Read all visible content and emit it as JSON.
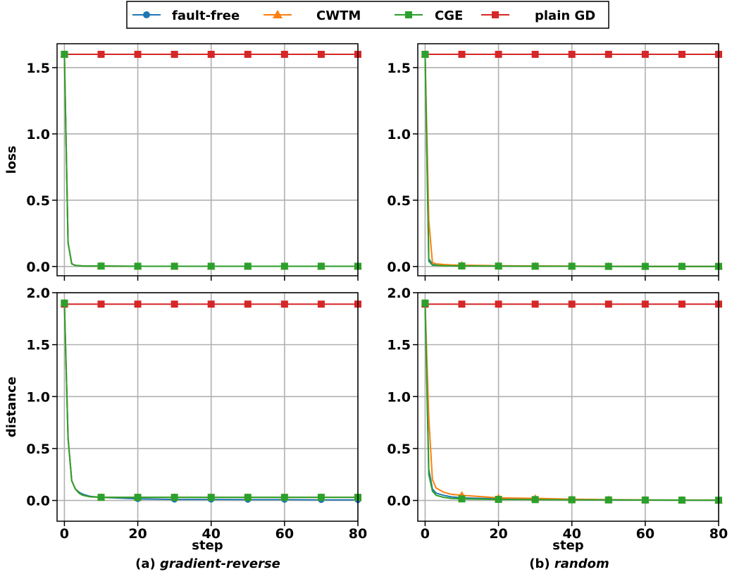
{
  "legend": {
    "placement": "top-center",
    "entries": [
      {
        "label": "fault-free",
        "color": "#1f77b4",
        "marker": "circle"
      },
      {
        "label": "CWTM",
        "color": "#ff7f0e",
        "marker": "triangle"
      },
      {
        "label": "CGE",
        "color": "#2ca02c",
        "marker": "square"
      },
      {
        "label": "plain GD",
        "color": "#d62728",
        "marker": "square"
      }
    ]
  },
  "captions": {
    "a_prefix": "(a) ",
    "a_name": "gradient-reverse",
    "b_prefix": "(b) ",
    "b_name": "random"
  },
  "chart_data": [
    {
      "id": "a-loss",
      "type": "line",
      "xlabel": "",
      "ylabel": "loss",
      "xlim": [
        -2,
        80
      ],
      "ylim": [
        -0.07,
        1.68
      ],
      "grid": true,
      "xticks": [
        0,
        20,
        40,
        60,
        80
      ],
      "yticks": [
        0.0,
        0.5,
        1.0,
        1.5
      ],
      "xtick_labels_visible": false,
      "series": [
        {
          "name": "fault-free",
          "x": [
            0,
            1,
            2,
            3,
            5,
            7,
            10,
            20,
            30,
            40,
            50,
            60,
            70,
            80
          ],
          "y": [
            1.6,
            0.18,
            0.02,
            0.008,
            0.004,
            0.003,
            0.003,
            0.002,
            0.002,
            0.002,
            0.002,
            0.002,
            0.002,
            0.002
          ],
          "marker_x": [
            0,
            10,
            20,
            30,
            40,
            50,
            60,
            70,
            80
          ]
        },
        {
          "name": "CWTM",
          "x": [
            0,
            1,
            2,
            3,
            5,
            7,
            10,
            20,
            30,
            40,
            50,
            60,
            70,
            80
          ],
          "y": [
            1.6,
            0.18,
            0.02,
            0.008,
            0.004,
            0.003,
            0.003,
            0.002,
            0.002,
            0.002,
            0.002,
            0.002,
            0.002,
            0.002
          ],
          "marker_x": [
            0,
            10,
            20,
            30,
            40,
            50,
            60,
            70,
            80
          ]
        },
        {
          "name": "CGE",
          "x": [
            0,
            1,
            2,
            3,
            5,
            7,
            10,
            20,
            30,
            40,
            50,
            60,
            70,
            80
          ],
          "y": [
            1.6,
            0.18,
            0.02,
            0.008,
            0.004,
            0.003,
            0.003,
            0.002,
            0.002,
            0.002,
            0.002,
            0.002,
            0.002,
            0.002
          ],
          "marker_x": [
            0,
            10,
            20,
            30,
            40,
            50,
            60,
            70,
            80
          ]
        },
        {
          "name": "plain GD",
          "x": [
            0,
            10,
            20,
            30,
            40,
            50,
            60,
            70,
            80
          ],
          "y": [
            1.6,
            1.6,
            1.6,
            1.6,
            1.6,
            1.6,
            1.6,
            1.6,
            1.6
          ],
          "marker_x": [
            0,
            10,
            20,
            30,
            40,
            50,
            60,
            70,
            80
          ]
        }
      ]
    },
    {
      "id": "b-loss",
      "type": "line",
      "xlabel": "",
      "ylabel": "",
      "xlim": [
        -2,
        80
      ],
      "ylim": [
        -0.07,
        1.68
      ],
      "grid": true,
      "xticks": [
        0,
        20,
        40,
        60,
        80
      ],
      "yticks": [
        0.0,
        0.5,
        1.0,
        1.5
      ],
      "xtick_labels_visible": false,
      "series": [
        {
          "name": "fault-free",
          "x": [
            0,
            1,
            2,
            3,
            5,
            7,
            10,
            20,
            30,
            40,
            50,
            60,
            70,
            80
          ],
          "y": [
            1.6,
            0.06,
            0.015,
            0.01,
            0.008,
            0.007,
            0.006,
            0.004,
            0.003,
            0.002,
            0.002,
            0.001,
            0.001,
            0.001
          ],
          "marker_x": [
            0,
            10,
            20,
            30,
            40,
            50,
            60,
            70,
            80
          ]
        },
        {
          "name": "CWTM",
          "x": [
            0,
            1,
            2,
            3,
            5,
            7,
            10,
            20,
            30,
            40,
            50,
            60,
            70,
            80
          ],
          "y": [
            1.6,
            0.35,
            0.03,
            0.02,
            0.015,
            0.012,
            0.01,
            0.006,
            0.004,
            0.003,
            0.002,
            0.001,
            0.001,
            0.001
          ],
          "marker_x": [
            0,
            10,
            20,
            30,
            40,
            50,
            60,
            70,
            80
          ]
        },
        {
          "name": "CGE",
          "x": [
            0,
            1,
            2,
            3,
            5,
            7,
            10,
            20,
            30,
            40,
            50,
            60,
            70,
            80
          ],
          "y": [
            1.6,
            0.04,
            0.01,
            0.008,
            0.006,
            0.005,
            0.004,
            0.003,
            0.002,
            0.002,
            0.001,
            0.001,
            0.001,
            0.001
          ],
          "marker_x": [
            0,
            10,
            20,
            30,
            40,
            50,
            60,
            70,
            80
          ]
        },
        {
          "name": "plain GD",
          "x": [
            0,
            10,
            20,
            30,
            40,
            50,
            60,
            70,
            80
          ],
          "y": [
            1.6,
            1.6,
            1.6,
            1.6,
            1.6,
            1.6,
            1.6,
            1.6,
            1.6
          ],
          "marker_x": [
            0,
            10,
            20,
            30,
            40,
            50,
            60,
            70,
            80
          ]
        }
      ]
    },
    {
      "id": "a-distance",
      "type": "line",
      "xlabel": "step",
      "ylabel": "distance",
      "xlim": [
        -2,
        80
      ],
      "ylim": [
        -0.2,
        2.0
      ],
      "grid": true,
      "xticks": [
        0,
        20,
        40,
        60,
        80
      ],
      "yticks": [
        0.0,
        0.5,
        1.0,
        1.5,
        2.0
      ],
      "xtick_labels_visible": true,
      "series": [
        {
          "name": "fault-free",
          "x": [
            0,
            1,
            2,
            3,
            4,
            5,
            7,
            10,
            20,
            30,
            40,
            50,
            60,
            70,
            80
          ],
          "y": [
            1.9,
            0.6,
            0.19,
            0.11,
            0.08,
            0.06,
            0.04,
            0.03,
            0.015,
            0.01,
            0.01,
            0.008,
            0.008,
            0.006,
            0.005
          ],
          "marker_x": [
            0,
            10,
            20,
            30,
            40,
            50,
            60,
            70,
            80
          ]
        },
        {
          "name": "CWTM",
          "x": [
            0,
            1,
            2,
            3,
            4,
            5,
            7,
            10,
            20,
            30,
            40,
            50,
            60,
            70,
            80
          ],
          "y": [
            1.9,
            0.6,
            0.19,
            0.11,
            0.07,
            0.05,
            0.035,
            0.03,
            0.03,
            0.03,
            0.03,
            0.03,
            0.03,
            0.03,
            0.03
          ],
          "marker_x": [
            0,
            10,
            20,
            30,
            40,
            50,
            60,
            70,
            80
          ]
        },
        {
          "name": "CGE",
          "x": [
            0,
            1,
            2,
            3,
            4,
            5,
            7,
            10,
            20,
            30,
            40,
            50,
            60,
            70,
            80
          ],
          "y": [
            1.9,
            0.6,
            0.19,
            0.11,
            0.07,
            0.05,
            0.035,
            0.03,
            0.03,
            0.03,
            0.03,
            0.03,
            0.03,
            0.03,
            0.03
          ],
          "marker_x": [
            0,
            10,
            20,
            30,
            40,
            50,
            60,
            70,
            80
          ]
        },
        {
          "name": "plain GD",
          "x": [
            0,
            10,
            20,
            30,
            40,
            50,
            60,
            70,
            80
          ],
          "y": [
            1.89,
            1.89,
            1.89,
            1.89,
            1.89,
            1.89,
            1.89,
            1.89,
            1.89
          ],
          "marker_x": [
            0,
            10,
            20,
            30,
            40,
            50,
            60,
            70,
            80
          ]
        }
      ]
    },
    {
      "id": "b-distance",
      "type": "line",
      "xlabel": "step",
      "ylabel": "",
      "xlim": [
        -2,
        80
      ],
      "ylim": [
        -0.2,
        2.0
      ],
      "grid": true,
      "xticks": [
        0,
        20,
        40,
        60,
        80
      ],
      "yticks": [
        0.0,
        0.5,
        1.0,
        1.5,
        2.0
      ],
      "xtick_labels_visible": true,
      "series": [
        {
          "name": "fault-free",
          "x": [
            0,
            1,
            2,
            3,
            5,
            7,
            10,
            20,
            30,
            40,
            50,
            60,
            70,
            80
          ],
          "y": [
            1.9,
            0.3,
            0.11,
            0.07,
            0.05,
            0.035,
            0.025,
            0.015,
            0.01,
            0.008,
            0.006,
            0.004,
            0.003,
            0.002
          ],
          "marker_x": [
            0,
            10,
            20,
            30,
            40,
            50,
            60,
            70,
            80
          ]
        },
        {
          "name": "CWTM",
          "x": [
            0,
            1,
            2,
            3,
            5,
            7,
            10,
            20,
            30,
            40,
            50,
            60,
            70,
            80
          ],
          "y": [
            1.9,
            0.8,
            0.2,
            0.12,
            0.08,
            0.06,
            0.05,
            0.025,
            0.02,
            0.012,
            0.008,
            0.005,
            0.004,
            0.003
          ],
          "marker_x": [
            0,
            10,
            20,
            30,
            40,
            50,
            60,
            70,
            80
          ]
        },
        {
          "name": "CGE",
          "x": [
            0,
            1,
            2,
            3,
            5,
            7,
            10,
            20,
            30,
            40,
            50,
            60,
            70,
            80
          ],
          "y": [
            1.9,
            0.25,
            0.09,
            0.05,
            0.03,
            0.02,
            0.015,
            0.01,
            0.008,
            0.006,
            0.005,
            0.004,
            0.003,
            0.002
          ],
          "marker_x": [
            0,
            10,
            20,
            30,
            40,
            50,
            60,
            70,
            80
          ]
        },
        {
          "name": "plain GD",
          "x": [
            0,
            10,
            20,
            30,
            40,
            50,
            60,
            70,
            80
          ],
          "y": [
            1.89,
            1.89,
            1.89,
            1.89,
            1.89,
            1.89,
            1.89,
            1.89,
            1.89
          ],
          "marker_x": [
            0,
            10,
            20,
            30,
            40,
            50,
            60,
            70,
            80
          ]
        }
      ]
    }
  ]
}
